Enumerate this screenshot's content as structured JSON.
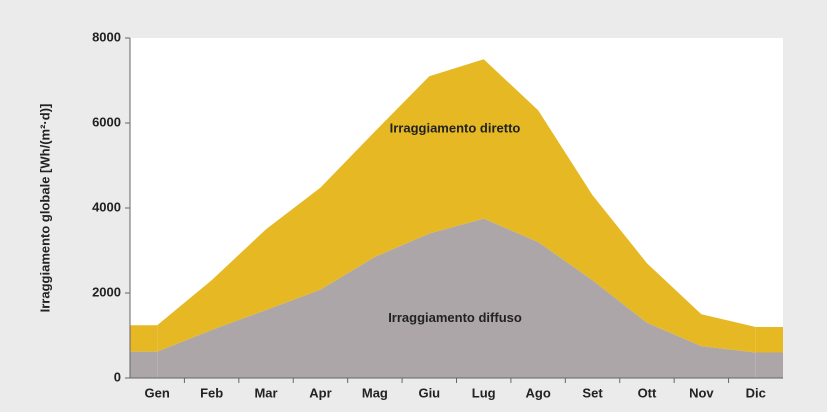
{
  "chart_data": {
    "type": "stacked_area",
    "y_label": "Irraggiamento globale [Wh/(m²·d)]",
    "categories": [
      "Gen",
      "Feb",
      "Mar",
      "Apr",
      "Mag",
      "Giu",
      "Lug",
      "Ago",
      "Set",
      "Ott",
      "Nov",
      "Dic"
    ],
    "series": [
      {
        "name": "Irraggiamento diffuso",
        "color": "#aca6a8",
        "values": [
          620,
          1130,
          1600,
          2080,
          2850,
          3400,
          3750,
          3200,
          2300,
          1300,
          750,
          600
        ]
      },
      {
        "name": "Irraggiamento diretto",
        "color": "#e6b823",
        "values": [
          620,
          1170,
          1900,
          2400,
          2950,
          3700,
          3750,
          3100,
          2000,
          1400,
          750,
          600
        ]
      }
    ],
    "ylim": [
      0,
      8000
    ],
    "yticks": [
      0,
      2000,
      4000,
      6000,
      8000
    ],
    "grid": false
  }
}
